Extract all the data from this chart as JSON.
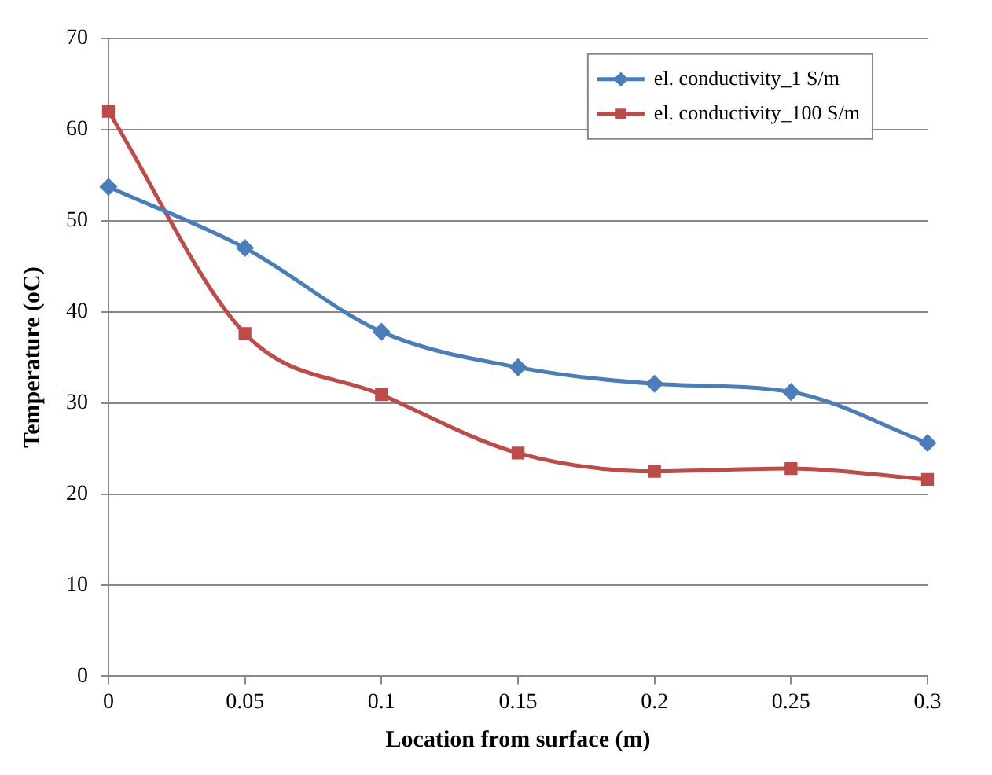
{
  "chart_data": {
    "type": "line",
    "xlabel": "Location from surface (m)",
    "ylabel": "Temperature (oC)",
    "x": [
      0,
      0.05,
      0.1,
      0.15,
      0.2,
      0.25,
      0.3
    ],
    "series": [
      {
        "name": "el. conductivity_1 S/m",
        "color": "#4a7ebb",
        "marker": "diamond",
        "values": [
          53.7,
          47,
          37.8,
          33.9,
          32.1,
          31.2,
          25.6
        ]
      },
      {
        "name": "el. conductivity_100 S/m",
        "color": "#be4b48",
        "marker": "square",
        "values": [
          62,
          37.6,
          30.9,
          24.5,
          22.5,
          22.8,
          21.6
        ]
      }
    ],
    "xlim": [
      0,
      0.3
    ],
    "xticks": [
      0,
      0.05,
      0.1,
      0.15,
      0.2,
      0.25,
      0.3
    ],
    "ylim": [
      0,
      70
    ],
    "yticks": [
      0,
      10,
      20,
      30,
      40,
      50,
      60,
      70
    ],
    "grid": "y",
    "legend": "top right",
    "line_style": "solid"
  }
}
